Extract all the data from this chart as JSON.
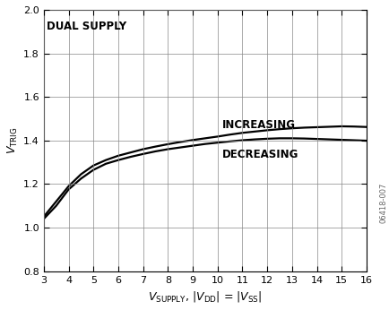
{
  "x_increasing": [
    3,
    3.5,
    4,
    4.5,
    5,
    5.5,
    6,
    6.5,
    7,
    7.5,
    8,
    8.5,
    9,
    9.5,
    10,
    10.5,
    11,
    11.5,
    12,
    12.5,
    13,
    13.5,
    14,
    14.5,
    15,
    15.5,
    16
  ],
  "y_increasing": [
    1.05,
    1.12,
    1.19,
    1.245,
    1.285,
    1.31,
    1.33,
    1.345,
    1.36,
    1.372,
    1.383,
    1.393,
    1.402,
    1.41,
    1.418,
    1.427,
    1.435,
    1.441,
    1.447,
    1.452,
    1.456,
    1.459,
    1.461,
    1.463,
    1.465,
    1.464,
    1.462
  ],
  "x_decreasing": [
    3,
    3.5,
    4,
    4.5,
    5,
    5.5,
    6,
    6.5,
    7,
    7.5,
    8,
    8.5,
    9,
    9.5,
    10,
    10.5,
    11,
    11.5,
    12,
    12.5,
    13,
    13.5,
    14,
    14.5,
    15,
    15.5,
    16
  ],
  "y_decreasing": [
    1.04,
    1.1,
    1.175,
    1.225,
    1.265,
    1.293,
    1.31,
    1.325,
    1.338,
    1.35,
    1.36,
    1.368,
    1.376,
    1.384,
    1.39,
    1.396,
    1.401,
    1.405,
    1.408,
    1.41,
    1.41,
    1.409,
    1.407,
    1.405,
    1.403,
    1.401,
    1.399
  ],
  "xlim": [
    3,
    16
  ],
  "ylim": [
    0.8,
    2.0
  ],
  "xticks": [
    3,
    4,
    5,
    6,
    7,
    8,
    9,
    10,
    11,
    12,
    13,
    14,
    15,
    16
  ],
  "yticks": [
    0.8,
    1.0,
    1.2,
    1.4,
    1.6,
    1.8,
    2.0
  ],
  "label_increasing": "INCREASING",
  "label_decreasing": "DECREASING",
  "annotation_dual_supply": "DUAL SUPPLY",
  "watermark": "06418-007",
  "line_color": "#000000",
  "line_width": 1.6,
  "font_size_annotation": 8.5,
  "font_size_axis_label": 9,
  "font_size_tick": 8,
  "bg_color": "#ffffff",
  "grid_color": "#888888"
}
